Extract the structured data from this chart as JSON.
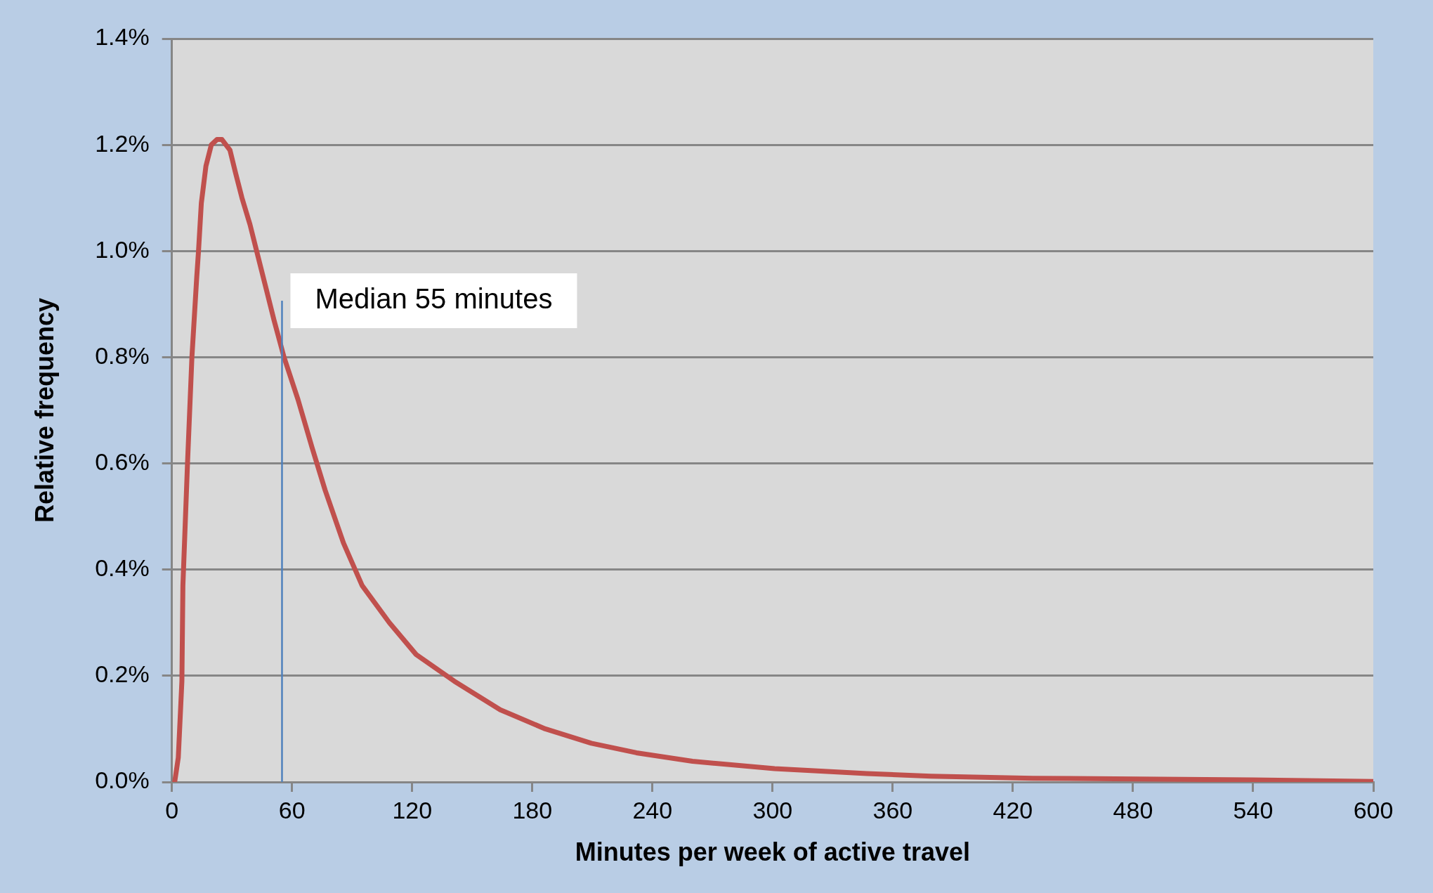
{
  "chart_data": {
    "type": "line",
    "xlabel": "Minutes per week of active travel",
    "ylabel": "Relative frequency",
    "x": [
      1.4,
      3.2,
      5,
      5.5,
      7.8,
      10,
      12.4,
      13.3,
      14.7,
      17,
      19.7,
      22.5,
      25,
      29,
      31.6,
      35,
      39,
      43,
      47,
      51,
      56,
      63,
      70,
      76.5,
      85.7,
      95,
      108.6,
      122,
      141,
      164,
      186.5,
      209.5,
      232,
      260,
      301,
      347,
      379,
      430,
      539,
      600
    ],
    "series": [
      {
        "color": "#c0504d",
        "values": [
          0,
          0.046,
          0.19,
          0.37,
          0.6,
          0.8,
          0.95,
          1.0,
          1.09,
          1.16,
          1.2,
          1.21,
          1.21,
          1.19,
          1.15,
          1.1,
          1.05,
          0.99,
          0.93,
          0.87,
          0.8,
          0.72,
          0.63,
          0.55,
          0.45,
          0.37,
          0.3,
          0.24,
          0.19,
          0.136,
          0.1,
          0.073,
          0.055,
          0.039,
          0.025,
          0.016,
          0.011,
          0.007,
          0.004,
          0.001
        ]
      }
    ],
    "xlim": [
      0,
      600
    ],
    "xticks": [
      0,
      60,
      120,
      180,
      240,
      300,
      360,
      420,
      480,
      540,
      600
    ],
    "ylim": [
      0,
      1.4
    ],
    "yticks": [
      {
        "value": 0,
        "label": "0.0%"
      },
      {
        "value": 0.2,
        "label": "0.2%"
      },
      {
        "value": 0.4,
        "label": "0.4%"
      },
      {
        "value": 0.6,
        "label": "0.6%"
      },
      {
        "value": 0.8,
        "label": "0.8%"
      },
      {
        "value": 1.0,
        "label": "1.0%"
      },
      {
        "value": 1.2,
        "label": "1.2%"
      },
      {
        "value": 1.4,
        "label": "1.4%"
      }
    ],
    "ref_lines": [
      {
        "axis": "x",
        "value": 55,
        "label": "Median 55 minutes",
        "color": "#4f81bd"
      }
    ],
    "grid": "y",
    "legend": false,
    "marker": "none",
    "line_style": "solid"
  }
}
